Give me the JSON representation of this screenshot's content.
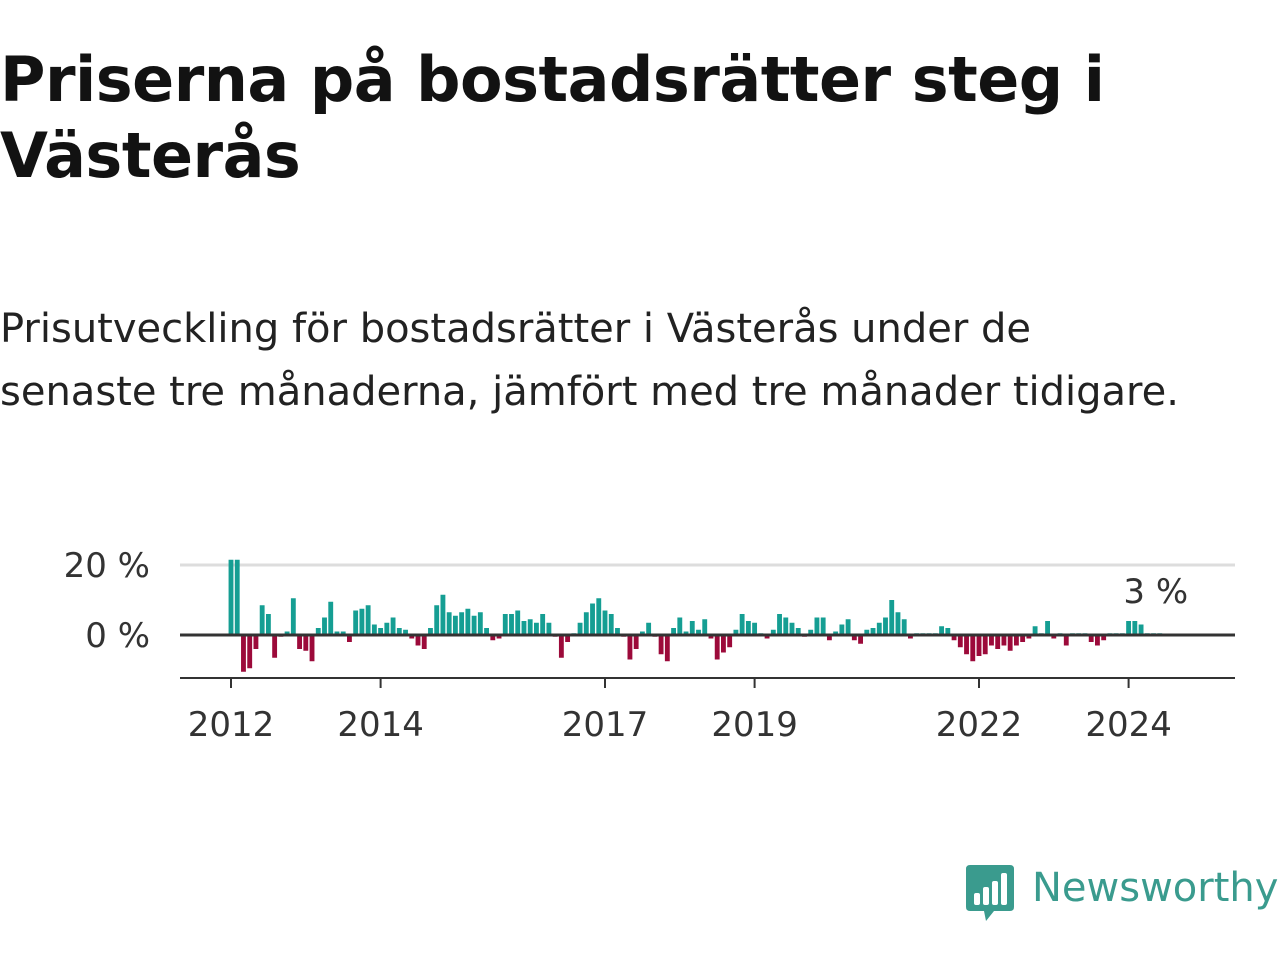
{
  "title": "Priserna på bostadsrätter steg i Västerås",
  "subtitle": "Prisutveckling för bostadsrätter i Västerås under de senaste tre månaderna, jämfört med tre månader tidigare.",
  "logo": {
    "name": "Newsworthy",
    "icon": "newsworthy-logo-icon"
  },
  "colors": {
    "positive": "#159e93",
    "negative": "#9c0a3a",
    "text": "#1a1a1a",
    "grid": "#dddddd",
    "axis": "#333333",
    "brand": "#3a9b8e"
  },
  "chart_data": {
    "type": "bar",
    "title": "",
    "xlabel": "",
    "ylabel": "",
    "ylim": [
      -12,
      22
    ],
    "yticks": [
      {
        "value": 0,
        "label": "0 %"
      },
      {
        "value": 20,
        "label": "20 %"
      }
    ],
    "xticks": [
      {
        "value": 2012,
        "label": "2012"
      },
      {
        "value": 2014,
        "label": "2014"
      },
      {
        "value": 2017,
        "label": "2017"
      },
      {
        "value": 2019,
        "label": "2019"
      },
      {
        "value": 2022,
        "label": "2022"
      },
      {
        "value": 2024,
        "label": "2024"
      }
    ],
    "series": [
      {
        "start": "2012-01",
        "frequency": "monthly",
        "values": [
          21.5,
          21.5,
          -10.5,
          -9.5,
          -4,
          8.5,
          6,
          -6.5,
          -0.5,
          1,
          10.5,
          -4,
          -4.5,
          -7.5,
          2,
          5,
          9.5,
          1,
          1,
          -2,
          7,
          7.5,
          8.5,
          3,
          2,
          3.5,
          5,
          2,
          1.5,
          -1,
          -3,
          -4,
          2,
          8.5,
          11.5,
          6.5,
          5.5,
          6.5,
          7.5,
          5.5,
          6.5,
          2,
          -1.5,
          -1,
          6,
          6,
          7,
          4,
          4.5,
          3.5,
          6,
          3.5,
          -0.5,
          -6.5,
          -2,
          0.5,
          3.5,
          6.5,
          9,
          10.5,
          7,
          6,
          2,
          -0.5,
          -7,
          -4,
          1,
          3.5,
          -0.5,
          -5.5,
          -7.5,
          2,
          5,
          1,
          4,
          1.5,
          4.5,
          -1,
          -7,
          -5,
          -3.5,
          1.5,
          6,
          4,
          3.5,
          0.5,
          -1,
          1.5,
          6,
          5,
          3.5,
          2,
          -0.5,
          1.5,
          5,
          5,
          -1.5,
          1,
          3,
          4.5,
          -1.5,
          -2.5,
          1.5,
          2,
          3.5,
          5,
          10,
          6.5,
          4.5,
          -1,
          0.5,
          0.5,
          0.5,
          0.5,
          2.5,
          2,
          -1.5,
          -3.5,
          -5.5,
          -7.5,
          -6,
          -5.5,
          -3,
          -4,
          -3,
          -4.5,
          -3,
          -2,
          -1,
          2.5,
          0.5,
          4,
          -1,
          0.5,
          -3,
          0.5,
          0.5,
          0.5,
          -2,
          -3,
          -1.5,
          0.5,
          0.5,
          0.5,
          4,
          4,
          3,
          0.5,
          0.5,
          0.5
        ]
      }
    ],
    "annotations": [
      {
        "text": "3 %",
        "value": 3
      }
    ]
  }
}
